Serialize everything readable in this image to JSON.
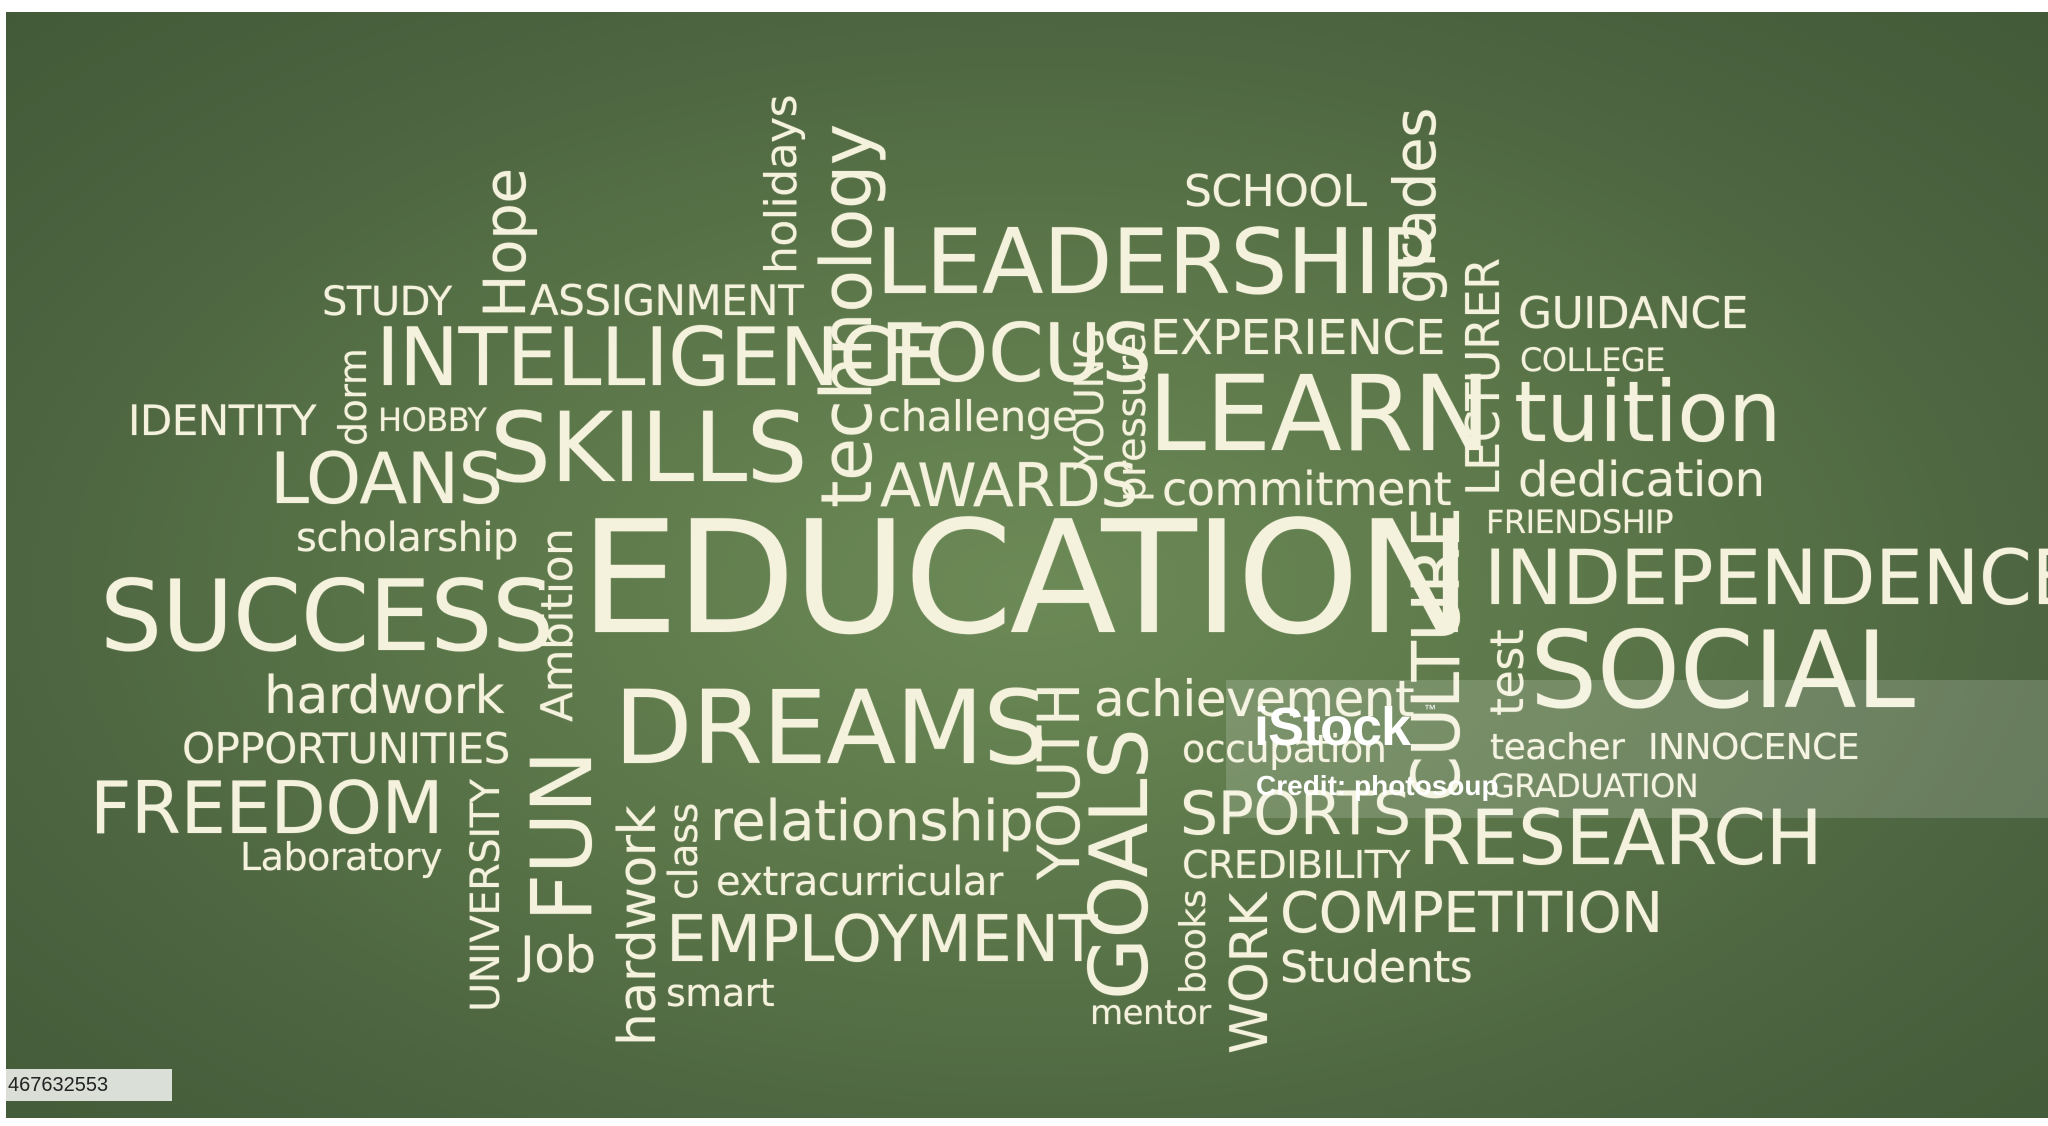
{
  "colors": {
    "board": "#536b45",
    "chalk": "#f4f1dc"
  },
  "words": {
    "study": "STUDY",
    "hope": "Hope",
    "assignment": "ASSIGNMENT",
    "holidays": "holidays",
    "technology": "technology",
    "leadership": "LEADERSHIP",
    "school": "SCHOOL",
    "grades": "grades",
    "lecturer": "LECTURER",
    "guidance": "GUIDANCE",
    "college": "COLLEGE",
    "dorm": "dorm",
    "intelligence": "INTELLIGENCE",
    "focus": "FOCUS",
    "young": "YOUNG",
    "pressure": "pressure",
    "experience": "EXPERIENCE",
    "learn": "LEARN",
    "tuition": "tuition",
    "identity": "IDENTITY",
    "hobby": "HOBBY",
    "skills": "SKILLS",
    "challenge": "challenge",
    "dedication": "dedication",
    "loans": "LOANS",
    "awards": "AWARDS",
    "commitment": "commitment",
    "friendship": "FRIENDSHIP",
    "scholarship": "scholarship",
    "ambition": "Ambition",
    "education": "EDUCATION",
    "culture": "CULTURE",
    "independence": "INDEPENDENCE",
    "success": "SUCCESS",
    "test": "test",
    "social": "SOCIAL",
    "hardwork1": "hardwork",
    "dreams": "DREAMS",
    "youth": "YOUTH",
    "achievement": "achievement",
    "opportunities": "OPPORTUNITIES",
    "occupation": "occupation",
    "teacher": "teacher",
    "innocence": "INNOCENCE",
    "freedom": "FREEDOM",
    "university": "UNIVERSITY",
    "fun": "FUN",
    "hardwork2": "hardwork",
    "class": "class",
    "relationship": "relationship",
    "goals": "GOALS",
    "sports": "SPORTS",
    "graduation": "GRADUATION",
    "research": "RESEARCH",
    "laboratory": "Laboratory",
    "credibility": "CREDIBILITY",
    "extracurricular": "extracurricular",
    "books": "books",
    "work": "WORK",
    "competition": "COMPETITION",
    "job": "Job",
    "employment": "EMPLOYMENT",
    "students": "Students",
    "smart": "smart",
    "mentor": "mentor"
  },
  "watermark": {
    "logo": "iStock",
    "tm": "™",
    "credit": "Credit: photosoup"
  },
  "image_id": "467632553"
}
